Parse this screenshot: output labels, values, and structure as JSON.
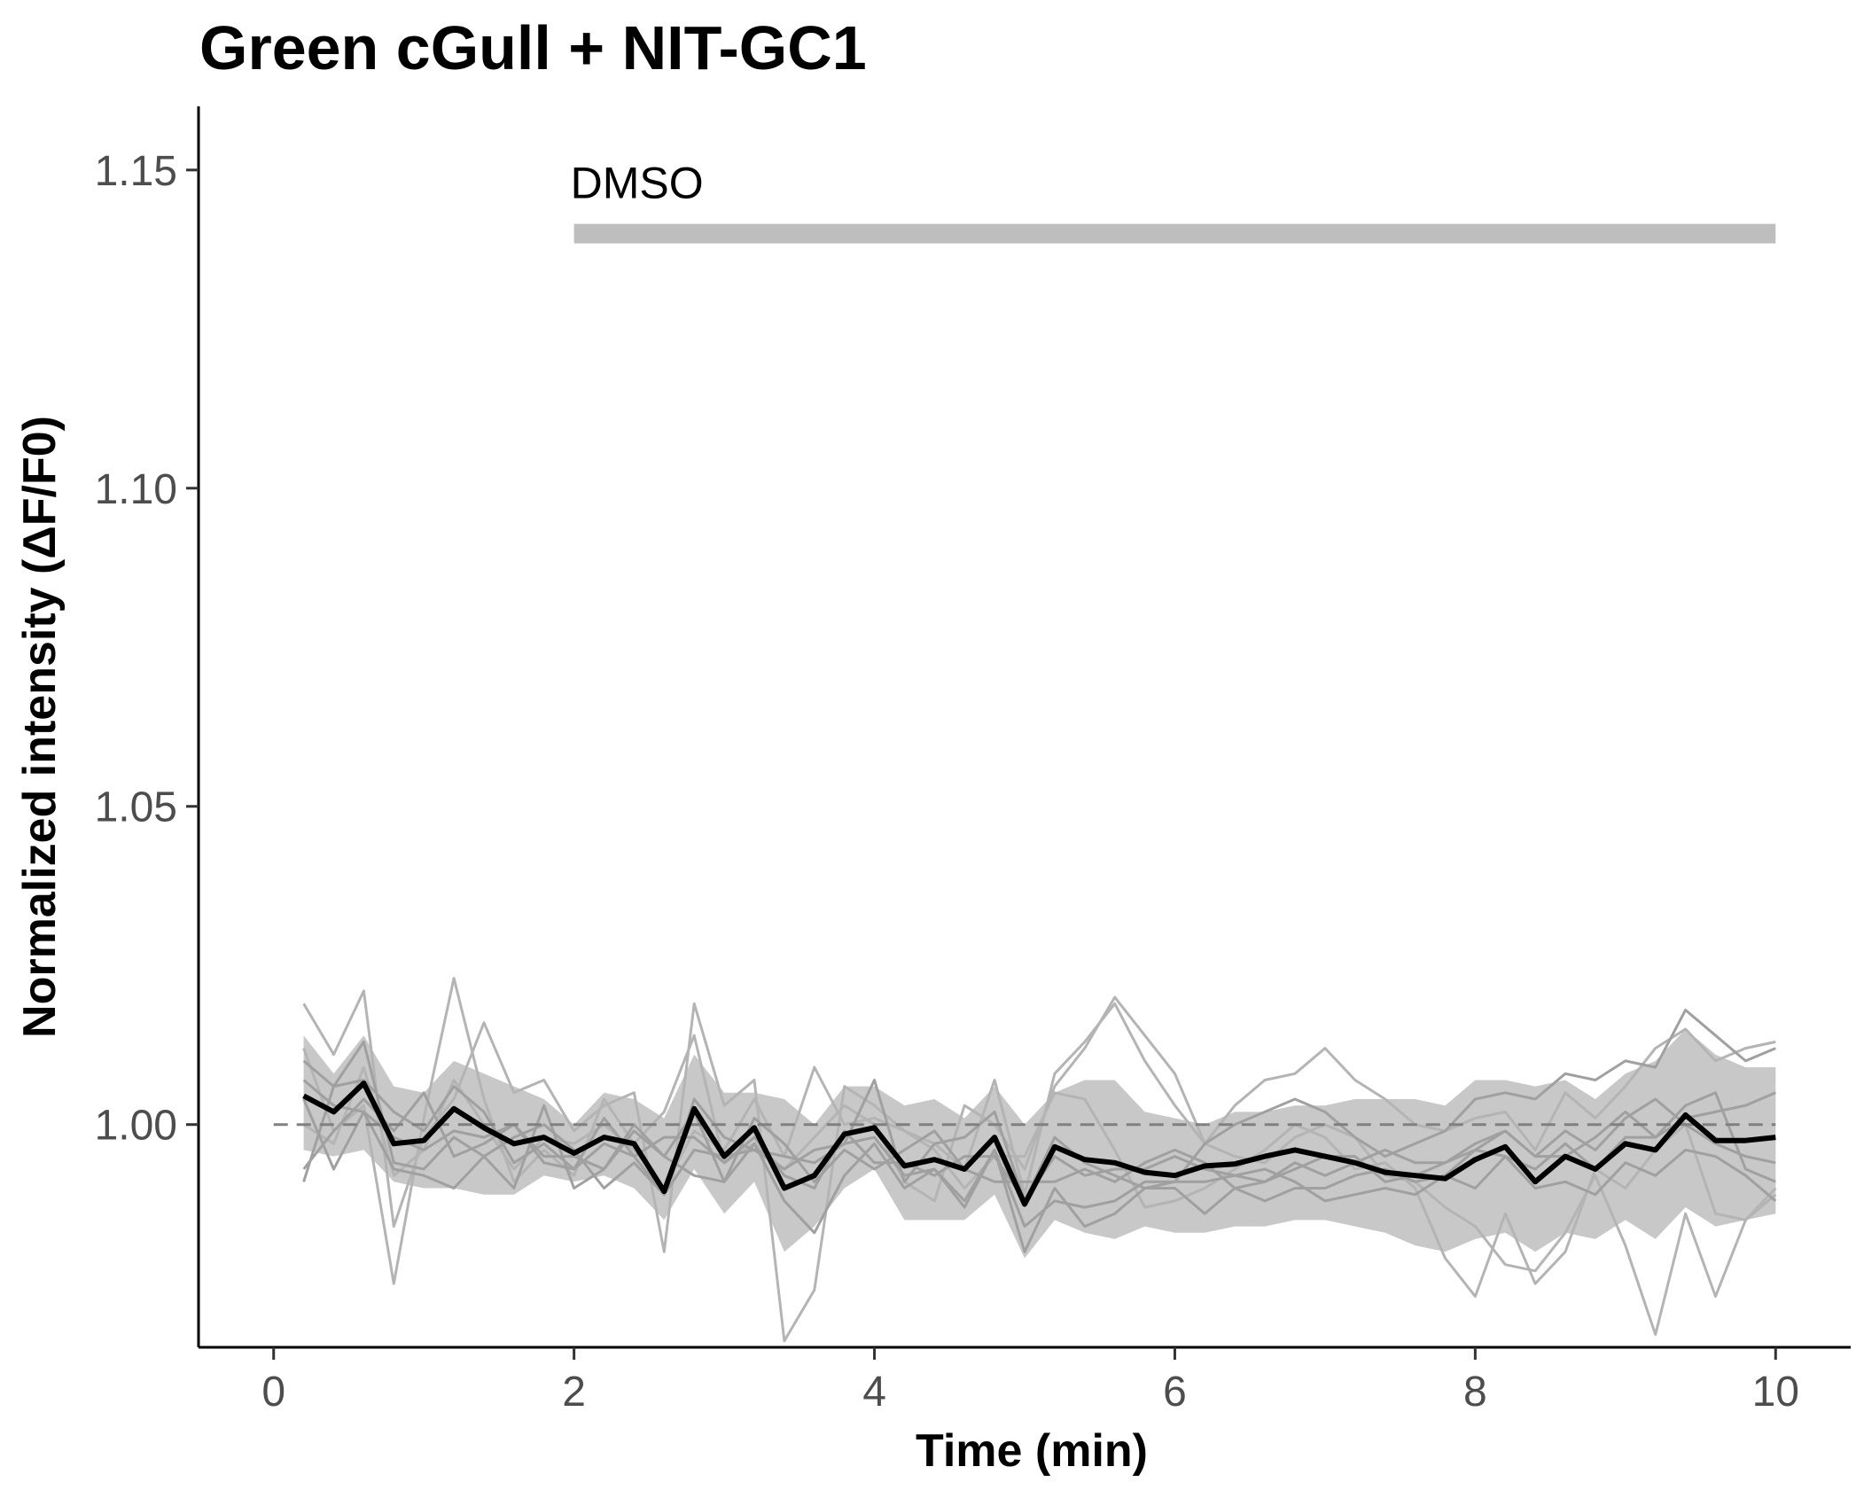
{
  "chart_data": {
    "type": "line",
    "title": "Green cGull + NIT-GC1",
    "xlabel": "Time (min)",
    "ylabel": "Normalized intensity (ΔF/F0)",
    "xlim": [
      -0.5,
      10.5
    ],
    "ylim": [
      0.965,
      1.16
    ],
    "x_ticks": [
      0,
      2,
      4,
      6,
      8,
      10
    ],
    "x_tick_labels": [
      "0",
      "2",
      "4",
      "6",
      "8",
      "10"
    ],
    "y_ticks": [
      1.0,
      1.05,
      1.1,
      1.15
    ],
    "y_tick_labels": [
      "1.00",
      "1.05",
      "1.10",
      "1.15"
    ],
    "grid": false,
    "reference_line": {
      "y": 1.0,
      "x_from": 0,
      "x_to": 10,
      "style": "dashed"
    },
    "treatment": {
      "label": "DMSO",
      "x_start": 2,
      "x_end": 10,
      "y": 1.14
    },
    "x": [
      0.2,
      0.4,
      0.6,
      0.8,
      1.0,
      1.2,
      1.4,
      1.6,
      1.8,
      2.0,
      2.2,
      2.4,
      2.6,
      2.8,
      3.0,
      3.2,
      3.4,
      3.6,
      3.8,
      4.0,
      4.2,
      4.4,
      4.6,
      4.8,
      5.0,
      5.2,
      5.4,
      5.6,
      5.8,
      6.0,
      6.2,
      6.4,
      6.6,
      6.8,
      7.0,
      7.2,
      7.4,
      7.6,
      7.8,
      8.0,
      8.2,
      8.4,
      8.6,
      8.8,
      9.0,
      9.2,
      9.4,
      9.6,
      9.8,
      10.0
    ],
    "mean": {
      "name": "mean",
      "color": "#000000",
      "values": [
        1.0045,
        1.002,
        1.0065,
        0.997,
        0.9975,
        1.0025,
        0.9995,
        0.997,
        0.998,
        0.9955,
        0.998,
        0.997,
        0.9895,
        1.0025,
        0.995,
        0.9995,
        0.99,
        0.992,
        0.9985,
        0.9995,
        0.9935,
        0.9945,
        0.993,
        0.998,
        0.9875,
        0.9965,
        0.9945,
        0.994,
        0.9925,
        0.992,
        0.9935,
        0.9938,
        0.995,
        0.996,
        0.995,
        0.994,
        0.9925,
        0.992,
        0.9915,
        0.9945,
        0.9965,
        0.991,
        0.995,
        0.993,
        0.997,
        0.996,
        1.0015,
        0.9975,
        0.9975,
        0.998
      ]
    },
    "band": {
      "color": "#c8c8c8",
      "upper": [
        1.014,
        1.008,
        1.014,
        1.006,
        1.005,
        1.01,
        1.008,
        1.006,
        1.004,
        1.0,
        1.005,
        1.004,
        1.001,
        1.011,
        1.005,
        1.005,
        1.004,
        1.0,
        1.006,
        1.006,
        1.003,
        1.004,
        1.001,
        1.006,
        1.0,
        1.005,
        1.007,
        1.007,
        1.002,
        1.001,
        1.0,
        1.002,
        1.002,
        1.003,
        1.003,
        1.004,
        1.004,
        1.004,
        1.003,
        1.007,
        1.007,
        1.006,
        1.007,
        1.004,
        1.008,
        1.01,
        1.015,
        1.011,
        1.009,
        1.009
      ],
      "lower": [
        0.996,
        0.995,
        0.996,
        0.991,
        0.99,
        0.99,
        0.989,
        0.989,
        0.992,
        0.991,
        0.992,
        0.99,
        0.985,
        0.993,
        0.986,
        0.991,
        0.98,
        0.984,
        0.99,
        0.993,
        0.985,
        0.985,
        0.985,
        0.989,
        0.979,
        0.985,
        0.983,
        0.982,
        0.984,
        0.983,
        0.983,
        0.984,
        0.984,
        0.985,
        0.985,
        0.984,
        0.983,
        0.981,
        0.98,
        0.982,
        0.983,
        0.98,
        0.983,
        0.982,
        0.985,
        0.982,
        0.987,
        0.984,
        0.985,
        0.986
      ]
    },
    "series": [
      {
        "color": "#b4b4b4",
        "values": [
          1.019,
          1.011,
          1.021,
          0.984,
          0.998,
          1.004,
          1.016,
          1.005,
          1.007,
          0.999,
          1.003,
          1.005,
          0.98,
          1.019,
          1.003,
          1.007,
          0.966,
          0.974,
          1.006,
          1.003,
          0.999,
          0.997,
          0.993,
          1.007,
          0.989,
          1.008,
          1.013,
          1.019,
          1.01,
          1.003,
          0.997,
          1.003,
          1.007,
          1.008,
          1.012,
          1.007,
          1.004,
          1.0,
          0.999,
          1.001,
          1.002,
          0.996,
          1.005,
          1.001,
          1.006,
          1.012,
          1.015,
          1.01,
          1.012,
          1.013
        ]
      },
      {
        "color": "#b4b4b4",
        "values": [
          1.012,
          0.999,
          1.003,
          0.975,
          1.001,
          1.023,
          1.004,
          0.991,
          0.996,
          0.992,
          1.004,
          0.997,
          1.002,
          1.014,
          0.994,
          0.997,
          0.993,
          0.998,
          1.003,
          1.0,
          0.991,
          0.988,
          1.003,
          1.0,
          0.993,
          1.006,
          1.012,
          1.02,
          1.014,
          1.008,
          0.997,
          0.995,
          0.994,
          0.998,
          1.0,
          0.998,
          0.992,
          0.991,
          0.987,
          0.984,
          0.978,
          0.977,
          0.983,
          0.992,
          0.981,
          0.967,
          0.986,
          0.973,
          0.985,
          0.99
        ]
      },
      {
        "color": "#b4b4b4",
        "values": [
          1.0,
          0.997,
          1.009,
          0.992,
          0.996,
          1.007,
          1.0,
          0.993,
          0.998,
          0.997,
          1.0,
          0.996,
          0.99,
          0.999,
          0.996,
          1.004,
          0.995,
          1.009,
          1.0,
          1.001,
          0.999,
          0.996,
          0.99,
          0.995,
          0.995,
          1.005,
          1.004,
          0.996,
          0.987,
          0.988,
          0.99,
          0.993,
          0.996,
          1.0,
          0.998,
          0.993,
          0.994,
          0.99,
          0.979,
          0.973,
          0.986,
          0.975,
          0.98,
          0.993,
          0.99,
          0.996,
          1.0,
          0.986,
          0.985,
          0.989
        ]
      },
      {
        "color": "#a0a0a0",
        "values": [
          0.991,
          1.006,
          1.013,
          0.994,
          0.993,
          0.998,
          0.995,
          0.99,
          1.003,
          0.99,
          0.993,
          0.999,
          0.995,
          1.002,
          0.991,
          0.997,
          0.988,
          0.983,
          0.992,
          0.997,
          0.99,
          0.993,
          0.988,
          0.996,
          0.98,
          0.99,
          0.984,
          0.986,
          0.99,
          0.99,
          0.986,
          0.99,
          0.988,
          0.99,
          0.99,
          0.992,
          0.993,
          0.991,
          0.992,
          0.99,
          0.995,
          0.993,
          0.997,
          0.993,
          0.998,
          0.998,
          1.003,
          1.005,
          0.993,
          0.991
        ]
      },
      {
        "color": "#a0a0a0",
        "values": [
          1.007,
          1.003,
          1.002,
          0.998,
          0.996,
          0.999,
          0.998,
          1.0,
          0.995,
          0.995,
          0.993,
          1.0,
          0.995,
          0.992,
          0.991,
          1.001,
          0.997,
          0.991,
          0.996,
          0.993,
          0.996,
          0.999,
          0.993,
          0.991,
          0.991,
          0.991,
          0.993,
          0.991,
          0.994,
          0.996,
          0.994,
          0.99,
          0.991,
          0.993,
          0.995,
          0.995,
          0.991,
          0.992,
          0.994,
          0.997,
          0.999,
          0.995,
          0.995,
          0.998,
          1.002,
          0.998,
          1.001,
          1.002,
          1.003,
          1.005
        ]
      },
      {
        "color": "#a0a0a0",
        "values": [
          0.993,
          0.999,
          1.004,
          0.999,
          1.005,
          0.995,
          0.997,
          1.0,
          0.994,
          0.993,
          0.997,
          0.995,
          0.998,
          0.998,
          0.994,
          0.998,
          0.992,
          0.99,
          0.999,
          0.994,
          0.994,
          0.992,
          0.995,
          0.995,
          0.988,
          0.995,
          0.992,
          0.993,
          0.993,
          0.995,
          0.993,
          0.992,
          0.991,
          0.994,
          0.992,
          0.994,
          0.996,
          0.994,
          0.994,
          0.996,
          0.999,
          0.995,
          0.999,
          0.996,
          1.001,
          1.004,
          1.0,
          0.997,
          0.995,
          0.994
        ]
      },
      {
        "color": "#a0a0a0",
        "values": [
          1.01,
          1.006,
          1.007,
          1.002,
          0.999,
          1.006,
          1.002,
          0.994,
          0.997,
          0.993,
          1.001,
          0.995,
          0.989,
          1.004,
          0.998,
          0.996,
          0.993,
          0.996,
          0.997,
          1.007,
          0.991,
          0.997,
          0.998,
          1.002,
          0.988,
          0.998,
          0.994,
          0.992,
          0.99,
          0.991,
          0.997,
          1.0,
          1.002,
          1.004,
          1.002,
          0.998,
          0.995,
          0.997,
          0.999,
          1.004,
          1.005,
          1.004,
          1.008,
          1.007,
          1.01,
          1.009,
          1.018,
          1.014,
          1.01,
          1.012
        ]
      },
      {
        "color": "#a0a0a0",
        "values": [
          1.004,
          0.993,
          1.002,
          0.993,
          0.992,
          0.99,
          0.995,
          0.998,
          1.0,
          0.996,
          0.99,
          0.994,
          0.989,
          0.996,
          0.995,
          0.996,
          0.995,
          0.994,
          0.997,
          0.998,
          0.992,
          0.993,
          0.987,
          0.996,
          0.984,
          0.988,
          0.987,
          0.988,
          0.991,
          0.991,
          0.991,
          0.992,
          0.993,
          0.991,
          0.988,
          0.989,
          0.99,
          0.989,
          0.992,
          0.996,
          0.995,
          0.99,
          0.991,
          0.989,
          0.994,
          0.992,
          0.996,
          0.995,
          0.992,
          0.988
        ]
      }
    ]
  }
}
